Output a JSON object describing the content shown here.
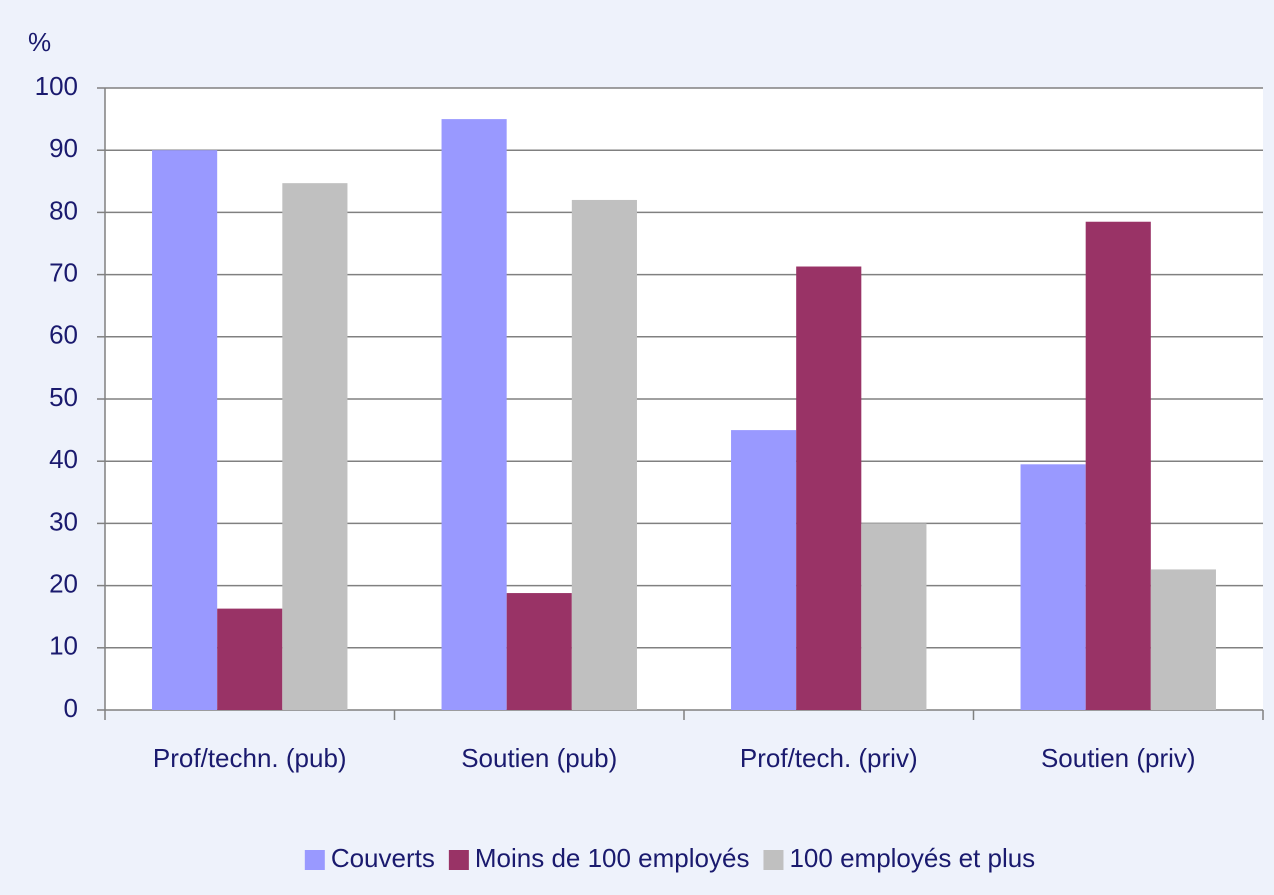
{
  "chart_data": {
    "type": "bar",
    "y_label": "%",
    "categories": [
      "Prof/techn. (pub)",
      "Soutien (pub)",
      "Prof/tech. (priv)",
      "Soutien (priv)"
    ],
    "series": [
      {
        "name": "Couverts",
        "color": "#9999ff",
        "values": [
          90,
          95,
          45,
          39.5
        ]
      },
      {
        "name": "Moins de 100 employés",
        "color": "#993366",
        "values": [
          16.3,
          18.8,
          71.3,
          78.5
        ]
      },
      {
        "name": "100 employés et plus",
        "color": "#c0c0c0",
        "values": [
          84.7,
          82,
          30,
          22.6
        ]
      }
    ],
    "ylim": [
      0,
      100
    ],
    "yticks": [
      0,
      10,
      20,
      30,
      40,
      50,
      60,
      70,
      80,
      90,
      100
    ],
    "grid": true,
    "legend": "bottom"
  }
}
